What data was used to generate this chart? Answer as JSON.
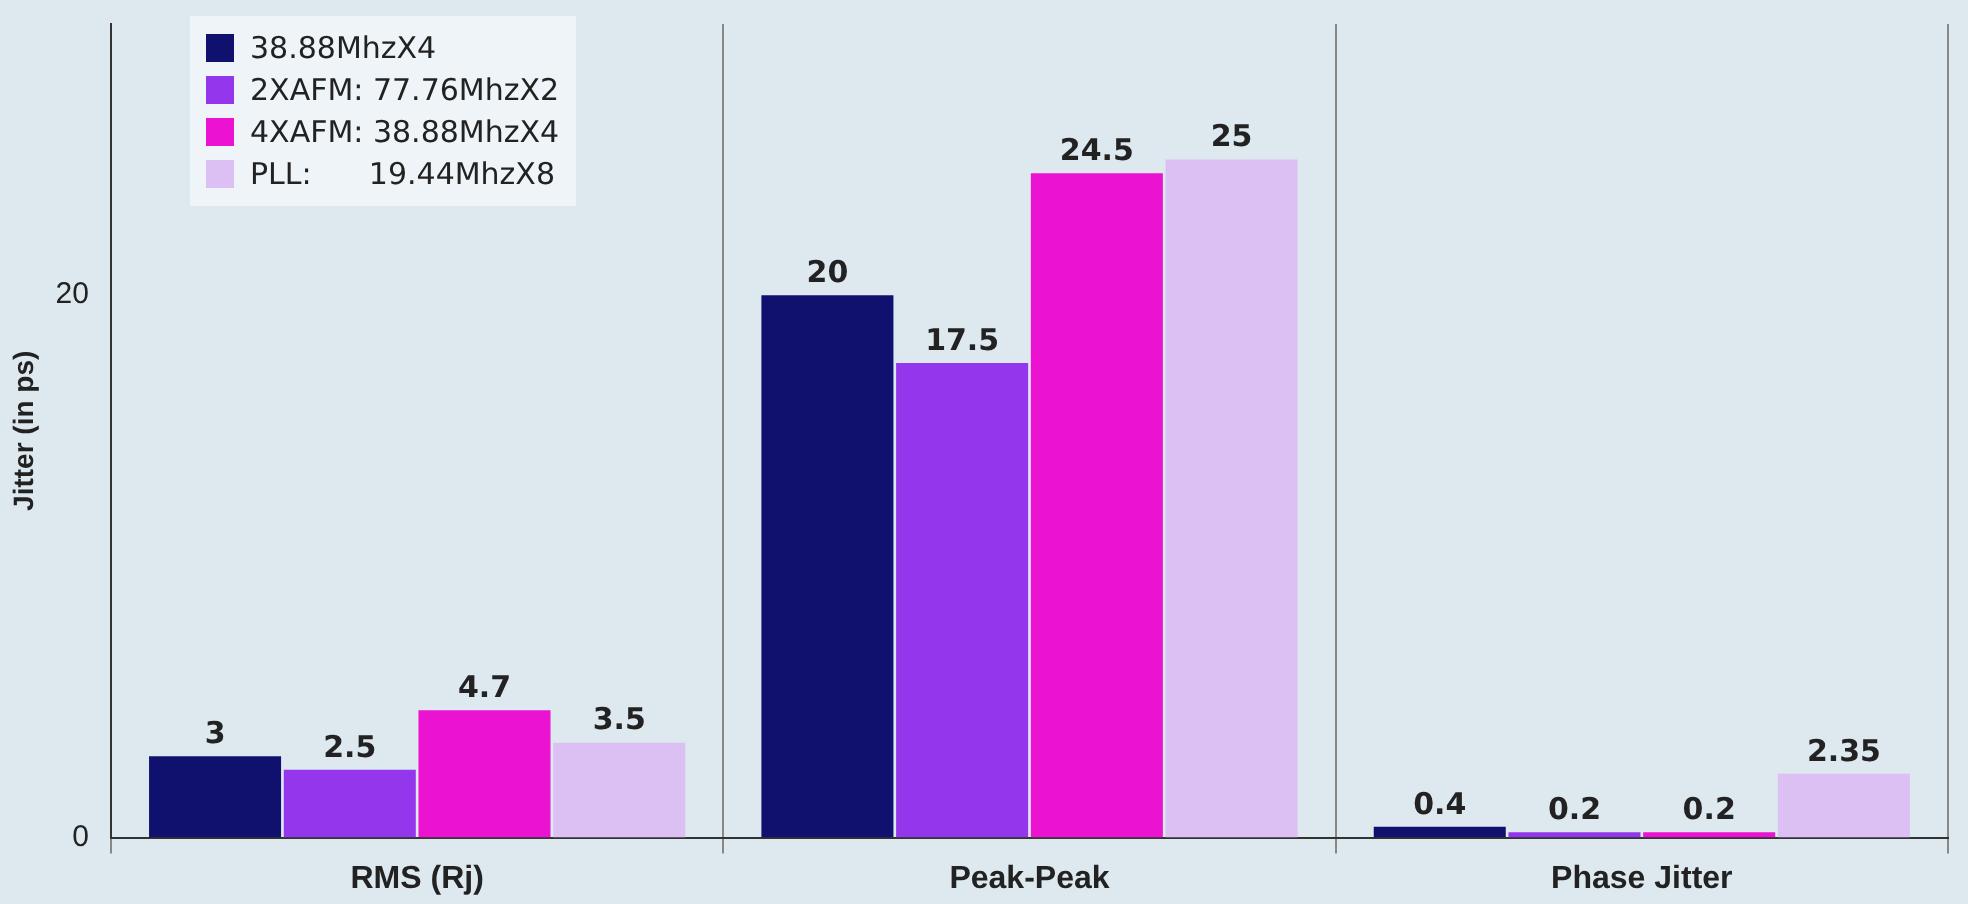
{
  "chart_data": {
    "type": "bar",
    "ylabel": "Jitter (in ps)",
    "categories": [
      "RMS (Rj)",
      "Peak-Peak",
      "Phase Jitter"
    ],
    "series": [
      {
        "name": "38.88MhzX4",
        "color": "#10106e",
        "values": [
          3,
          20,
          0.4
        ]
      },
      {
        "name": "2XAFM: 77.76MhzX2",
        "color": "#9436ec",
        "values": [
          2.5,
          17.5,
          0.2
        ]
      },
      {
        "name": "4XAFM: 38.88MhzX4",
        "color": "#ec12d2",
        "values": [
          4.7,
          24.5,
          0.2
        ]
      },
      {
        "name": "PLL:      19.44MhzX8",
        "color": "#dcc0f4",
        "values": [
          3.5,
          25,
          2.35
        ]
      }
    ],
    "ylim": [
      0,
      30
    ],
    "yticks": [
      0,
      20
    ],
    "grid": "x",
    "legend": "top left",
    "data_labels": true
  }
}
